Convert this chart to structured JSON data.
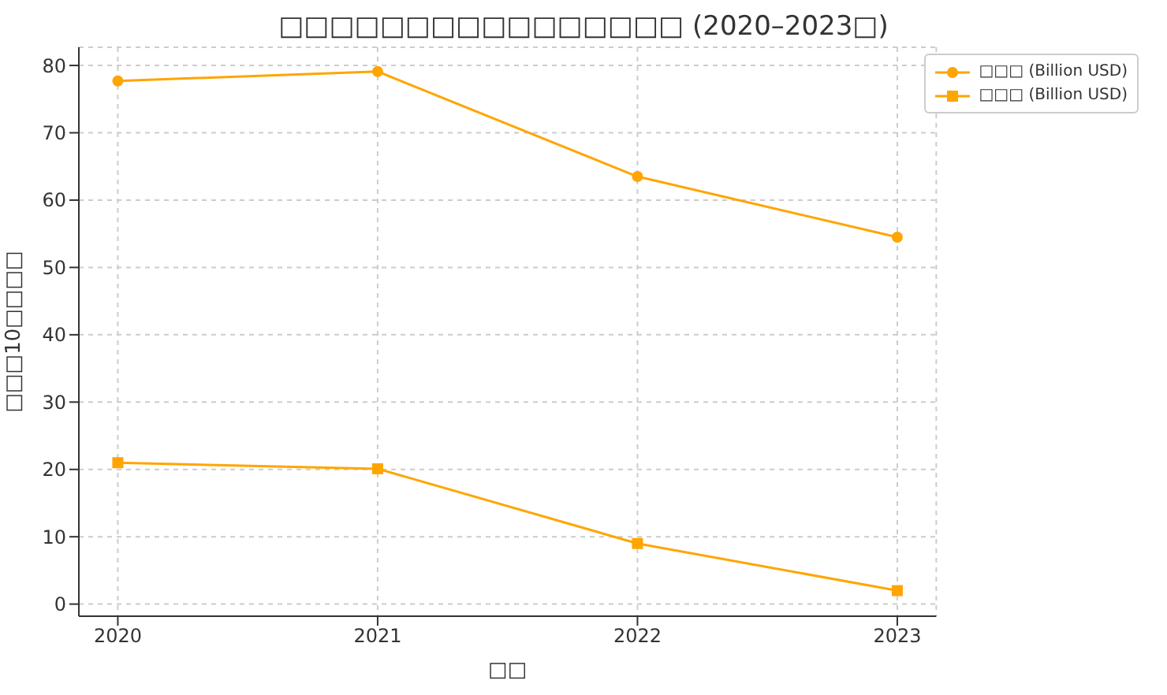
{
  "chart_data": {
    "type": "line",
    "title": "□□□□□□□□□□□□□□□□ (2020–2023□)",
    "xlabel": "□□",
    "ylabel": "□□□10□□□□",
    "x": [
      2020,
      2021,
      2022,
      2023
    ],
    "xlim": [
      2019.85,
      2023.15
    ],
    "xticks": [
      2020,
      2021,
      2022,
      2023
    ],
    "ylim": [
      -1.8,
      82.7
    ],
    "yticks": [
      0,
      10,
      20,
      30,
      40,
      50,
      60,
      70,
      80
    ],
    "grid": true,
    "legend": "top right",
    "series": [
      {
        "name": "□□□ (Billion USD)",
        "color": "#ffa500",
        "marker": "circle",
        "values": [
          77.7,
          79.1,
          63.5,
          54.5
        ]
      },
      {
        "name": "□□□ (Billion USD)",
        "color": "#ffa500",
        "marker": "square",
        "values": [
          21.0,
          20.1,
          9.0,
          2.0
        ]
      }
    ]
  }
}
